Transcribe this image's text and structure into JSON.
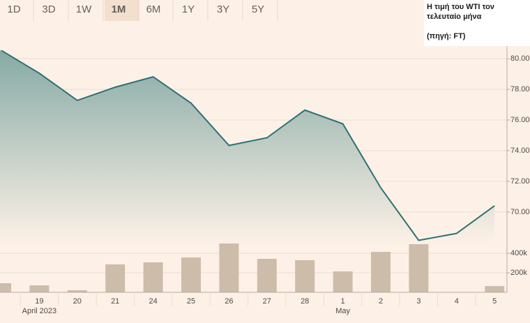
{
  "ui": {
    "range_buttons": [
      "1D",
      "3D",
      "1W",
      "1M",
      "6M",
      "1Y",
      "3Y",
      "5Y"
    ],
    "selected_button": 3
  },
  "annotation": {
    "title": "Η τιμή του WTI τον τελευταίο μήνα",
    "source": "(πηγή: FT)"
  },
  "chart_data": {
    "type": "line",
    "categories": [
      null,
      "19",
      "20",
      "21",
      "24",
      "25",
      "26",
      "27",
      "28",
      "1",
      "2",
      "3",
      "4",
      "5"
    ],
    "month_labels": [
      {
        "label": "April 2023",
        "at": "19"
      },
      {
        "label": "May",
        "at": "1"
      }
    ],
    "series": [
      {
        "color": "#2f7173",
        "values": [
          80.54,
          79.05,
          77.28,
          78.14,
          78.82,
          77.1,
          74.34,
          74.84,
          76.65,
          75.75,
          71.58,
          68.15,
          68.6,
          70.41
        ]
      },
      {
        "type": "bar",
        "axis": "y2",
        "color": "#cdbcaa",
        "values": [
          93000,
          71000,
          21000,
          286000,
          307000,
          357000,
          500000,
          343000,
          329000,
          214000,
          414000,
          493000,
          null,
          64000
        ]
      }
    ],
    "ylim": [
      67.9,
      81.1
    ],
    "yticks": [
      {
        "value": 70,
        "label": "70.00"
      },
      {
        "value": 72,
        "label": "72.00"
      },
      {
        "value": 74,
        "label": "74.00"
      },
      {
        "value": 76,
        "label": "76.00"
      },
      {
        "value": 78,
        "label": "78.00"
      },
      {
        "value": 80,
        "label": "80.00"
      }
    ],
    "y2lim": [
      0,
      500000
    ],
    "y2ticks": [
      {
        "value": 200000,
        "label": "200k"
      },
      {
        "value": 400000,
        "label": "400k"
      }
    ],
    "grid": true
  }
}
